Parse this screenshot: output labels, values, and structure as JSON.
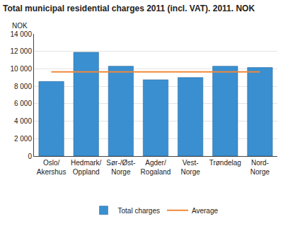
{
  "chart_data": {
    "type": "bar",
    "title": "Total municipal residential charges 2011 (incl. VAT). 2011. NOK",
    "ylabel": "NOK",
    "categories": [
      "Oslo/\nAkershus",
      "Hedmark/\nOppland",
      "Sør-/Øst-\nNorge",
      "Agder/\nRogaland",
      "Vest-\nNorge",
      "Trøndelag",
      "Nord-\nNorge"
    ],
    "series": [
      {
        "name": "Total charges",
        "type": "bar",
        "color": "#3a8fd0",
        "values": [
          8550,
          11900,
          10300,
          8750,
          9000,
          10300,
          10150
        ]
      },
      {
        "name": "Average",
        "type": "line",
        "color": "#f0883a",
        "values": [
          9650,
          9650,
          9650,
          9650,
          9650,
          9650,
          9650
        ]
      }
    ],
    "ylim": [
      0,
      14000
    ],
    "yticks": [
      0,
      {
        "value": 2000,
        "label": "2 000"
      },
      {
        "value": 4000,
        "label": "4 000"
      },
      {
        "value": 6000,
        "label": "6 000"
      },
      {
        "value": 8000,
        "label": "8 000"
      },
      {
        "value": 10000,
        "label": "10 000"
      },
      {
        "value": 12000,
        "label": "12 000"
      },
      {
        "value": 14000,
        "label": "14 000"
      }
    ],
    "grid": true,
    "legend": "bottom"
  }
}
